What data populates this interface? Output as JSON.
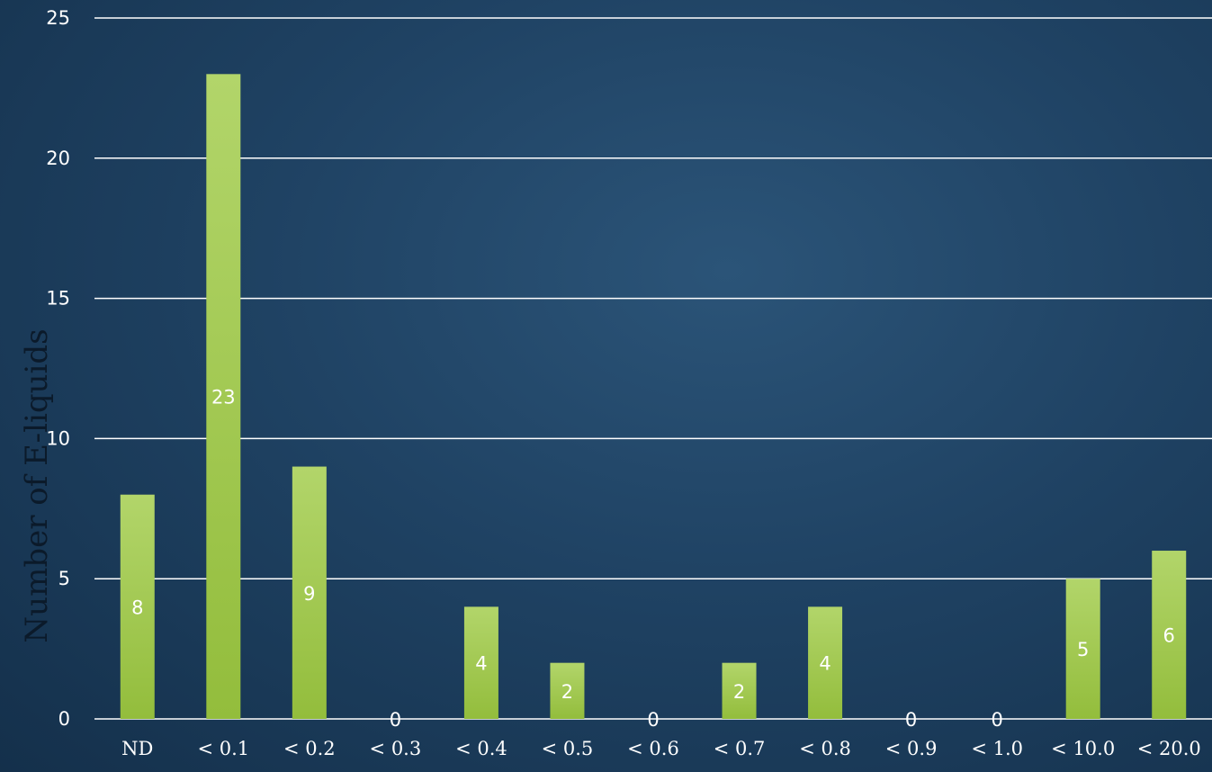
{
  "chart_data": {
    "type": "bar",
    "title": "",
    "xlabel": "",
    "ylabel": "Number of E-liquids",
    "categories": [
      "ND",
      "< 0.1",
      "< 0.2",
      "< 0.3",
      "< 0.4",
      "< 0.5",
      "< 0.6",
      "< 0.7",
      "< 0.8",
      "< 0.9",
      "< 1.0",
      "< 10.0",
      "< 20.0"
    ],
    "values": [
      8,
      23,
      9,
      0,
      4,
      2,
      0,
      2,
      4,
      0,
      0,
      5,
      6
    ],
    "data_labels": [
      "8",
      "23",
      "9",
      "0",
      "4",
      "2",
      "0",
      "2",
      "4",
      "0",
      "0",
      "5",
      "6"
    ],
    "ylim": [
      0,
      25
    ],
    "yticks": [
      0,
      5,
      10,
      15,
      20,
      25
    ],
    "grid": true,
    "legend": "none",
    "colors": {
      "bar_top": "#b2d56a",
      "bar_bottom": "#93bd3c",
      "gridline": "#ffffff",
      "text": "#ffffff",
      "ylabel": "#0b1a2a",
      "background": "#1f4263"
    }
  }
}
